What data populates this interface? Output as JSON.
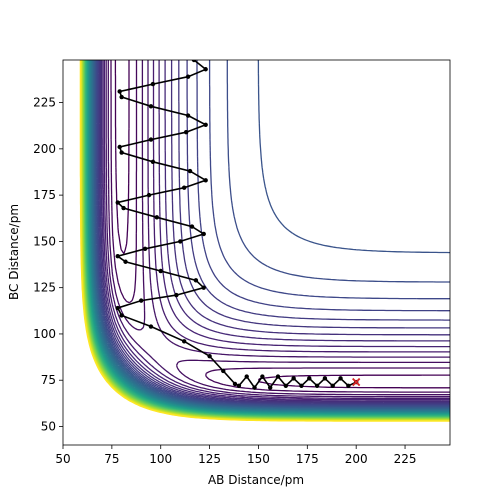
{
  "chart_data": {
    "type": "scatter",
    "xlabel": "AB Distance/pm",
    "ylabel": "BC Distance/pm",
    "xlim": [
      50,
      248
    ],
    "ylim": [
      40,
      248
    ],
    "xticks": [
      50,
      75,
      100,
      125,
      150,
      175,
      200,
      225
    ],
    "yticks": [
      50,
      75,
      100,
      125,
      150,
      175,
      200,
      225
    ],
    "series": [
      {
        "color": "#000000",
        "x": [
          200,
          196,
          192,
          188,
          184,
          180,
          176,
          172,
          168,
          164,
          160,
          156,
          152,
          148,
          144,
          140,
          138,
          132,
          125,
          112,
          95,
          80,
          78,
          90,
          108,
          122,
          118,
          100,
          82,
          78,
          92,
          110,
          122,
          116,
          98,
          81,
          78,
          94,
          112,
          123,
          115,
          96,
          80,
          79,
          95,
          113,
          123,
          114,
          95,
          80,
          79,
          96,
          114,
          123,
          117
        ],
        "values": [
          74,
          72,
          76,
          72,
          76,
          72,
          76,
          72,
          76,
          72,
          77,
          71,
          77,
          71,
          77,
          72,
          73,
          80,
          88,
          96,
          104,
          110,
          114,
          118,
          121,
          125,
          129,
          134,
          139,
          142,
          146,
          150,
          154,
          158,
          163,
          168,
          171,
          175,
          179,
          183,
          188,
          193,
          198,
          201,
          205,
          209,
          213,
          218,
          223,
          228,
          231,
          235,
          239,
          243,
          248
        ]
      }
    ],
    "marker": {
      "x": 200,
      "y": 74,
      "color": "#d62728"
    }
  }
}
